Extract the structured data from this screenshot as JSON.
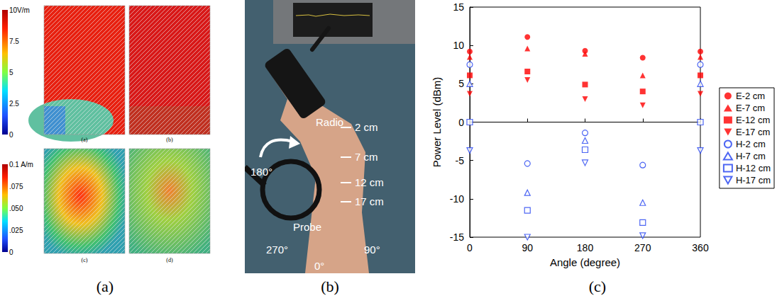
{
  "figure": {
    "panel_labels": [
      "(a)",
      "(b)",
      "(c)"
    ]
  },
  "field_maps": {
    "subfigure_labels": [
      "(a)",
      "(b)",
      "(c)",
      "(d)"
    ],
    "e_colorbar": {
      "range": [
        0,
        10
      ],
      "ticks": [
        {
          "value": 10,
          "label": "10V/m"
        },
        7.5,
        5,
        2.5,
        0
      ]
    },
    "h_colorbar": {
      "range": [
        0,
        0.1
      ],
      "ticks": [
        {
          "value": 0.1,
          "label": "0.1 A/m"
        },
        {
          "value": 0.075,
          "label": ".075"
        },
        {
          "value": 0.05,
          "label": ".050"
        },
        {
          "value": 0.025,
          "label": ".025"
        },
        0
      ]
    }
  },
  "photo": {
    "device_label": "Radio",
    "probe_label": "Probe",
    "distances": [
      "2 cm",
      "7 cm",
      "12 cm",
      "17 cm"
    ],
    "angles": [
      "180°",
      "270°",
      "0°",
      "90°"
    ]
  },
  "chart_data": {
    "type": "scatter",
    "xlabel": "Angle (degree)",
    "ylabel": "Power Level (dBm)",
    "x": [
      0,
      90,
      180,
      270,
      360
    ],
    "xlim": [
      0,
      360
    ],
    "xticks": [
      0,
      90,
      180,
      270,
      360
    ],
    "ylim": [
      -15,
      15
    ],
    "yticks": [
      -15,
      -10,
      -5,
      0,
      5,
      10,
      15
    ],
    "grid": false,
    "legend": "right",
    "series": [
      {
        "name": "E-2 cm",
        "color": "#ff0000",
        "marker": "circle",
        "values": [
          9.2,
          11.1,
          9.3,
          8.4,
          9.2
        ]
      },
      {
        "name": "E-7 cm",
        "color": "#ff0000",
        "marker": "triangle",
        "values": [
          8.5,
          9.6,
          8.9,
          6.1,
          8.5
        ]
      },
      {
        "name": "E-12 cm",
        "color": "#ff0000",
        "marker": "square",
        "values": [
          6.1,
          6.6,
          4.9,
          4.0,
          6.1
        ]
      },
      {
        "name": "E-17 cm",
        "color": "#ff0000",
        "marker": "triangle-down",
        "values": [
          3.7,
          5.5,
          3.0,
          2.2,
          3.7
        ]
      },
      {
        "name": "H-2 cm",
        "color": "#2040f0",
        "marker": "circle-open",
        "values": [
          7.5,
          -5.4,
          -1.4,
          -5.6,
          7.5
        ]
      },
      {
        "name": "H-7 cm",
        "color": "#2040f0",
        "marker": "triangle-open",
        "values": [
          5.0,
          -9.2,
          -2.4,
          -10.5,
          5.0
        ]
      },
      {
        "name": "H-12 cm",
        "color": "#2040f0",
        "marker": "square-open",
        "values": [
          0.0,
          -11.5,
          -3.6,
          -13.1,
          0.0
        ]
      },
      {
        "name": "H-17 cm",
        "color": "#2040f0",
        "marker": "triangle-down-open",
        "values": [
          -3.7,
          -15.0,
          -5.3,
          -14.8,
          -3.7
        ]
      }
    ]
  }
}
